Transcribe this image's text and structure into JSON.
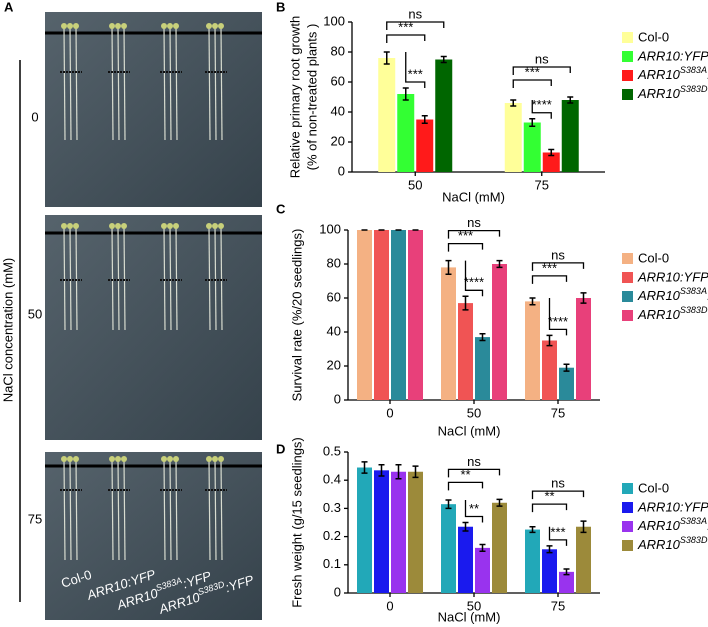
{
  "panel_a": {
    "panel": "A",
    "axis_label": "NaCl concentration (mM)",
    "rows": [
      "0",
      "50",
      "75"
    ],
    "genotypes": [
      [
        "Col-0"
      ],
      [
        "ARR10:YFP"
      ],
      [
        "ARR10",
        "S383A",
        ":YFP"
      ],
      [
        "ARR10",
        "S383D",
        ":YFP"
      ]
    ]
  },
  "chart_data": [
    {
      "type": "bar",
      "panel": "B",
      "y_label": [
        "Relative primary root growth",
        "(% of non-treated plants  )"
      ],
      "x_label": "NaCl (mM)",
      "categories": [
        "50",
        "75"
      ],
      "ylim": [
        0,
        100
      ],
      "yticks": [
        0,
        20,
        40,
        60,
        80,
        100
      ],
      "series": [
        {
          "name": "Col-0",
          "style": "normal",
          "color": "#ffff99",
          "values": [
            76,
            46
          ],
          "errors": [
            4,
            2
          ]
        },
        {
          "name": "ARR10:YFP",
          "style": "italic",
          "color": "#33ff33",
          "values": [
            52,
            33
          ],
          "errors": [
            4,
            2.5
          ]
        },
        {
          "name": [
            "ARR10",
            "S383A",
            ":YFP"
          ],
          "style": "italic",
          "color": "#ff1a1a",
          "values": [
            35,
            13
          ],
          "errors": [
            2.5,
            2
          ]
        },
        {
          "name": [
            "ARR10",
            "S383D",
            ":YFP"
          ],
          "style": "italic",
          "color": "#006600",
          "values": [
            75,
            48
          ],
          "errors": [
            2,
            2
          ]
        }
      ],
      "significance": [
        [
          "ns",
          "***",
          "***"
        ],
        [
          "ns",
          "***",
          "****"
        ]
      ]
    },
    {
      "type": "bar",
      "panel": "C",
      "y_label": "Survival rate (%/20 seedlings)",
      "x_label": "NaCl (mM)",
      "categories": [
        "0",
        "50",
        "75"
      ],
      "ylim": [
        0,
        100
      ],
      "yticks": [
        0,
        20,
        40,
        60,
        80,
        100
      ],
      "series": [
        {
          "name": "Col-0",
          "style": "normal",
          "color": "#f4b183",
          "values": [
            100,
            78,
            58
          ],
          "errors": [
            0,
            4,
            2
          ]
        },
        {
          "name": "ARR10:YFP",
          "style": "italic",
          "color": "#f05454",
          "values": [
            100,
            57,
            35
          ],
          "errors": [
            0,
            4,
            3
          ]
        },
        {
          "name": [
            "ARR10",
            "S383A",
            ":YFP"
          ],
          "style": "italic",
          "color": "#2a8a9a",
          "values": [
            100,
            37,
            19
          ],
          "errors": [
            0,
            2,
            2
          ]
        },
        {
          "name": [
            "ARR10",
            "S383D",
            ":YFP"
          ],
          "style": "italic",
          "color": "#e8407a",
          "values": [
            100,
            80,
            60
          ],
          "errors": [
            0,
            2,
            3
          ]
        }
      ],
      "significance": [
        [],
        [
          "ns",
          "***",
          "****"
        ],
        [
          "ns",
          "***",
          "****"
        ]
      ]
    },
    {
      "type": "bar",
      "panel": "D",
      "y_label": "Fresh weight (g/15 seedlings)",
      "x_label": "NaCl (mM)",
      "categories": [
        "0",
        "50",
        "75"
      ],
      "ylim": [
        0,
        0.5
      ],
      "yticks": [
        0,
        0.1,
        0.2,
        0.3,
        0.4,
        0.5
      ],
      "series": [
        {
          "name": "Col-0",
          "style": "normal",
          "color": "#22a8b8",
          "values": [
            0.445,
            0.315,
            0.225
          ],
          "errors": [
            0.02,
            0.015,
            0.01
          ]
        },
        {
          "name": "ARR10:YFP",
          "style": "italic",
          "color": "#1a1aee",
          "values": [
            0.435,
            0.235,
            0.155
          ],
          "errors": [
            0.02,
            0.015,
            0.012
          ]
        },
        {
          "name": [
            "ARR10",
            "S383A",
            ":YFP"
          ],
          "style": "italic",
          "color": "#9933ee",
          "values": [
            0.43,
            0.16,
            0.075
          ],
          "errors": [
            0.025,
            0.012,
            0.01
          ]
        },
        {
          "name": [
            "ARR10",
            "S383D",
            ":YFP"
          ],
          "style": "italic",
          "color": "#9c8a3a",
          "values": [
            0.43,
            0.32,
            0.235
          ],
          "errors": [
            0.02,
            0.012,
            0.02
          ]
        }
      ],
      "significance": [
        [],
        [
          "ns",
          "**",
          "**"
        ],
        [
          "ns",
          "**",
          "***"
        ]
      ]
    }
  ]
}
